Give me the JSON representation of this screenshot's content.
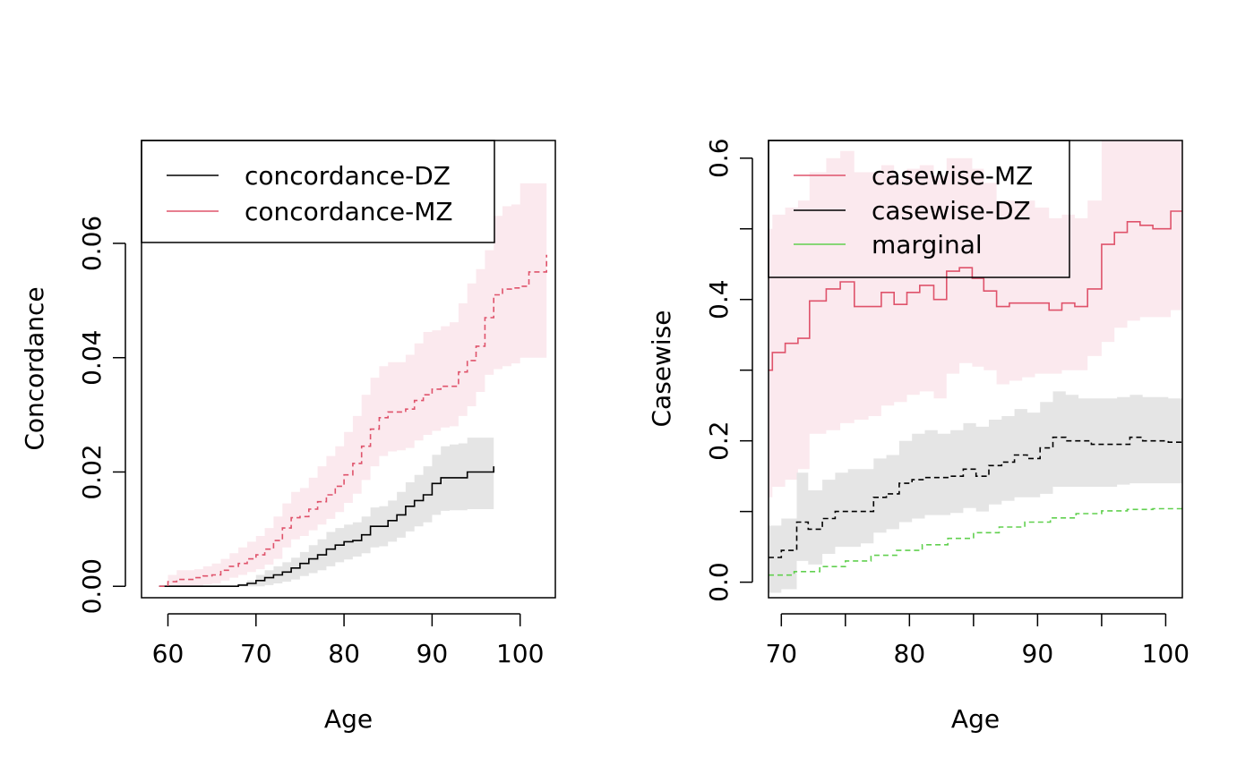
{
  "colors": {
    "mz": "#DF536B",
    "mz_band": "#FBE9EE",
    "dz": "#000000",
    "dz_band": "#E5E5E5",
    "marginal": "#61D04F"
  },
  "chart_data": [
    {
      "type": "line",
      "xlabel": "Age",
      "ylabel": "Concordance",
      "xlim": [
        57,
        104
      ],
      "ylim": [
        -0.002,
        0.078
      ],
      "xticks": [
        60,
        70,
        80,
        90,
        100
      ],
      "yticks": [
        0.0,
        0.02,
        0.04,
        0.06
      ],
      "xtick_labels": [
        "60",
        "70",
        "80",
        "90",
        "100"
      ],
      "ytick_labels": [
        "0.00",
        "0.02",
        "0.04",
        "0.06"
      ],
      "legend": {
        "position": "top-left",
        "entries": [
          "concordance-DZ",
          "concordance-MZ"
        ]
      },
      "series": [
        {
          "name": "concordance-DZ",
          "color_key": "dz",
          "band_key": "dz_band",
          "dashed": false,
          "x": [
            59,
            68,
            69,
            70,
            71,
            72,
            73,
            74,
            75,
            76,
            77,
            78,
            79,
            80,
            81,
            82,
            83,
            84,
            85,
            86,
            87,
            88,
            89,
            90,
            91,
            92,
            93,
            94,
            95,
            96,
            97
          ],
          "y": [
            0.0,
            0.0002,
            0.0005,
            0.001,
            0.0015,
            0.002,
            0.0025,
            0.0032,
            0.004,
            0.0048,
            0.0055,
            0.0065,
            0.0072,
            0.0078,
            0.008,
            0.009,
            0.0105,
            0.0105,
            0.0115,
            0.0125,
            0.014,
            0.015,
            0.016,
            0.018,
            0.019,
            0.019,
            0.019,
            0.02,
            0.02,
            0.02,
            0.021
          ],
          "lo": [
            0.0,
            0.0,
            0.0,
            0.0,
            0.0002,
            0.0005,
            0.0008,
            0.0012,
            0.0018,
            0.0023,
            0.0028,
            0.0035,
            0.0042,
            0.0047,
            0.0052,
            0.0058,
            0.0068,
            0.007,
            0.0078,
            0.0085,
            0.0096,
            0.0105,
            0.0112,
            0.0125,
            0.0132,
            0.0133,
            0.0133,
            0.0135,
            0.0135,
            0.0135,
            0.0135
          ],
          "hi": [
            0.0,
            0.0005,
            0.001,
            0.002,
            0.0028,
            0.0035,
            0.0042,
            0.005,
            0.006,
            0.0072,
            0.0082,
            0.0095,
            0.0102,
            0.0108,
            0.0112,
            0.0122,
            0.0138,
            0.014,
            0.015,
            0.0165,
            0.0182,
            0.0195,
            0.021,
            0.023,
            0.0245,
            0.0248,
            0.025,
            0.026,
            0.026,
            0.026,
            0.026
          ]
        },
        {
          "name": "concordance-MZ",
          "color_key": "mz",
          "band_key": "mz_band",
          "dashed": true,
          "x": [
            59,
            60,
            61,
            62,
            63,
            64,
            65,
            66,
            67,
            68,
            69,
            70,
            71,
            72,
            73,
            74,
            75,
            76,
            77,
            78,
            79,
            80,
            81,
            82,
            83,
            84,
            85,
            86,
            87,
            88,
            89,
            90,
            91,
            92,
            93,
            94,
            95,
            96,
            97,
            98,
            99,
            100,
            101,
            102,
            103
          ],
          "y": [
            0.0,
            0.0008,
            0.0012,
            0.0012,
            0.0015,
            0.0018,
            0.002,
            0.0028,
            0.0035,
            0.004,
            0.0048,
            0.0055,
            0.0065,
            0.008,
            0.0102,
            0.012,
            0.0122,
            0.0135,
            0.0148,
            0.016,
            0.0175,
            0.0195,
            0.0215,
            0.0245,
            0.0275,
            0.0295,
            0.0305,
            0.0305,
            0.031,
            0.0325,
            0.0335,
            0.0345,
            0.035,
            0.035,
            0.0375,
            0.0395,
            0.042,
            0.047,
            0.051,
            0.052,
            0.0522,
            0.0525,
            0.055,
            0.055,
            0.058
          ],
          "lo": [
            0.0,
            0.0,
            0.0,
            0.0,
            0.0,
            0.0003,
            0.0005,
            0.001,
            0.0015,
            0.002,
            0.0025,
            0.003,
            0.0038,
            0.0048,
            0.0068,
            0.0082,
            0.0088,
            0.0098,
            0.0108,
            0.0118,
            0.013,
            0.0146,
            0.0162,
            0.0186,
            0.021,
            0.0228,
            0.0236,
            0.0238,
            0.0242,
            0.0255,
            0.0265,
            0.0272,
            0.0278,
            0.028,
            0.0298,
            0.0315,
            0.034,
            0.037,
            0.038,
            0.0385,
            0.039,
            0.04,
            0.04,
            0.04,
            0.04
          ],
          "hi": [
            0.0,
            0.002,
            0.0028,
            0.0028,
            0.003,
            0.0035,
            0.004,
            0.0048,
            0.0058,
            0.0068,
            0.0078,
            0.0088,
            0.0102,
            0.0122,
            0.0145,
            0.0165,
            0.0172,
            0.019,
            0.021,
            0.0228,
            0.0245,
            0.027,
            0.0298,
            0.0335,
            0.0365,
            0.0385,
            0.0392,
            0.0392,
            0.0405,
            0.0425,
            0.0445,
            0.0448,
            0.0455,
            0.0462,
            0.0495,
            0.053,
            0.0555,
            0.0588,
            0.0648,
            0.0665,
            0.0668,
            0.0705,
            0.0705,
            0.0705,
            0.0705
          ]
        }
      ]
    },
    {
      "type": "line",
      "xlabel": "Age",
      "ylabel": "Casewise",
      "xlim": [
        69,
        101.3
      ],
      "ylim": [
        -0.022,
        0.625
      ],
      "xticks": [
        70,
        80,
        90,
        100
      ],
      "yticks": [
        0.0,
        0.2,
        0.4,
        0.6
      ],
      "xtick_labels": [
        "70",
        "80",
        "90",
        "100"
      ],
      "ytick_labels": [
        "0.0",
        "0.2",
        "0.4",
        "0.6"
      ],
      "minor_xticks": [
        75,
        85,
        95
      ],
      "minor_yticks": [
        0.1,
        0.3,
        0.5
      ],
      "legend": {
        "position": "top-left",
        "entries": [
          "casewise-MZ",
          "casewise-DZ",
          "marginal"
        ]
      },
      "series": [
        {
          "name": "casewise-MZ",
          "color_key": "mz",
          "band_key": "mz_band",
          "dashed": false,
          "x": [
            69,
            69.3,
            70.3,
            71.3,
            72.2,
            73.5,
            74.6,
            75.7,
            76.8,
            77.8,
            78.8,
            79.8,
            80.8,
            81.9,
            82.9,
            83.9,
            84.9,
            85.8,
            86.8,
            87.8,
            88.8,
            89.8,
            90.9,
            91.9,
            92.9,
            93.9,
            95,
            96,
            97,
            98,
            99,
            100.4,
            101.3
          ],
          "y": [
            0.3,
            0.325,
            0.338,
            0.345,
            0.398,
            0.415,
            0.425,
            0.39,
            0.39,
            0.41,
            0.393,
            0.41,
            0.42,
            0.4,
            0.44,
            0.445,
            0.43,
            0.412,
            0.39,
            0.395,
            0.395,
            0.395,
            0.385,
            0.395,
            0.39,
            0.415,
            0.478,
            0.495,
            0.51,
            0.505,
            0.5,
            0.525,
            0.525
          ],
          "lo": [
            0.12,
            0.135,
            0.145,
            0.16,
            0.21,
            0.215,
            0.225,
            0.23,
            0.235,
            0.25,
            0.255,
            0.265,
            0.27,
            0.26,
            0.295,
            0.31,
            0.305,
            0.3,
            0.28,
            0.285,
            0.29,
            0.295,
            0.295,
            0.3,
            0.3,
            0.32,
            0.34,
            0.36,
            0.37,
            0.375,
            0.375,
            0.385,
            0.385
          ],
          "hi": [
            0.5,
            0.52,
            0.53,
            0.54,
            0.58,
            0.6,
            0.61,
            0.58,
            0.58,
            0.59,
            0.57,
            0.585,
            0.59,
            0.575,
            0.6,
            0.6,
            0.585,
            0.565,
            0.54,
            0.54,
            0.54,
            0.53,
            0.515,
            0.52,
            0.515,
            0.54,
            0.625,
            0.625,
            0.625,
            0.625,
            0.625,
            0.625,
            0.625
          ]
        },
        {
          "name": "casewise-DZ",
          "color_key": "dz",
          "band_key": "dz_band",
          "dashed": true,
          "x": [
            69,
            70,
            71.2,
            72.1,
            73.2,
            74.2,
            75.2,
            76.2,
            77.2,
            78.2,
            79.2,
            80.2,
            81.2,
            82.2,
            83.2,
            84.2,
            85.2,
            86.2,
            87.2,
            88.2,
            89.2,
            90.2,
            91.2,
            92.2,
            93.2,
            94.2,
            95.2,
            96.2,
            97.2,
            98.2,
            99.2,
            100.2,
            101.3
          ],
          "y": [
            0.035,
            0.045,
            0.085,
            0.075,
            0.09,
            0.1,
            0.1,
            0.1,
            0.12,
            0.125,
            0.14,
            0.145,
            0.148,
            0.148,
            0.15,
            0.16,
            0.15,
            0.165,
            0.17,
            0.18,
            0.175,
            0.19,
            0.205,
            0.2,
            0.2,
            0.195,
            0.195,
            0.195,
            0.205,
            0.2,
            0.2,
            0.198,
            0.198
          ],
          "lo": [
            -0.015,
            -0.01,
            0.03,
            0.025,
            0.04,
            0.05,
            0.05,
            0.055,
            0.07,
            0.075,
            0.085,
            0.09,
            0.095,
            0.095,
            0.098,
            0.105,
            0.1,
            0.11,
            0.115,
            0.12,
            0.12,
            0.125,
            0.135,
            0.135,
            0.135,
            0.135,
            0.135,
            0.138,
            0.14,
            0.14,
            0.14,
            0.14,
            0.14
          ],
          "hi": [
            0.08,
            0.09,
            0.155,
            0.13,
            0.145,
            0.155,
            0.16,
            0.16,
            0.175,
            0.18,
            0.2,
            0.21,
            0.215,
            0.21,
            0.215,
            0.225,
            0.22,
            0.23,
            0.235,
            0.245,
            0.24,
            0.255,
            0.27,
            0.265,
            0.26,
            0.26,
            0.26,
            0.262,
            0.265,
            0.262,
            0.262,
            0.26,
            0.26
          ]
        },
        {
          "name": "marginal",
          "color_key": "marginal",
          "dashed": true,
          "x": [
            69,
            71,
            73,
            75,
            77,
            79,
            81,
            83,
            85,
            87,
            89,
            91,
            93,
            95,
            97,
            99,
            101.3
          ],
          "y": [
            0.01,
            0.015,
            0.022,
            0.03,
            0.038,
            0.045,
            0.053,
            0.062,
            0.07,
            0.078,
            0.085,
            0.091,
            0.097,
            0.101,
            0.103,
            0.104,
            0.105
          ]
        }
      ]
    }
  ]
}
